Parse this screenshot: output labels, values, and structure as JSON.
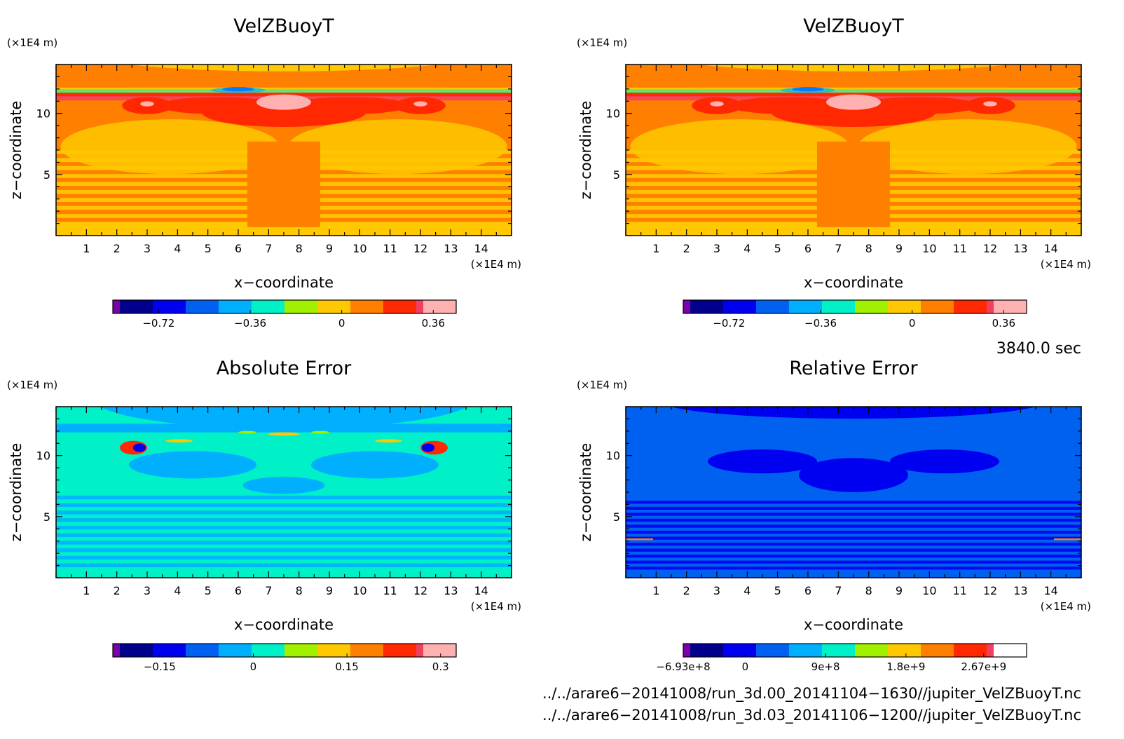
{
  "chart_data": [
    {
      "type": "heatmap",
      "title": "VelZBuoyT",
      "xlabel": "x−coordinate",
      "ylabel": "z−coordinate",
      "x_unit": "(×1E4 m)",
      "y_unit": "(×1E4 m)",
      "xlim": [
        0,
        15
      ],
      "ylim": [
        0,
        14
      ],
      "x_ticks": [
        "1",
        "2",
        "3",
        "4",
        "5",
        "6",
        "7",
        "8",
        "9",
        "10",
        "11",
        "12",
        "13",
        "14"
      ],
      "y_ticks": [
        "5",
        "10"
      ],
      "colorbar": {
        "range": [
          -0.9,
          0.45
        ],
        "labels": [
          "−0.72",
          "−0.36",
          "0",
          "0.36"
        ],
        "label_values": [
          -0.72,
          -0.36,
          0,
          0.36
        ],
        "colors": [
          "#7a00a8",
          "#00008c",
          "#0000f0",
          "#0060f0",
          "#00b0ff",
          "#00f0c8",
          "#a0f000",
          "#ffc800",
          "#ff8000",
          "#ff2800",
          "#f04060",
          "#ffb0b0"
        ]
      }
    },
    {
      "type": "heatmap",
      "title": "VelZBuoyT",
      "xlabel": "x−coordinate",
      "ylabel": "z−coordinate",
      "x_unit": "(×1E4 m)",
      "y_unit": "(×1E4 m)",
      "xlim": [
        0,
        15
      ],
      "ylim": [
        0,
        14
      ],
      "x_ticks": [
        "1",
        "2",
        "3",
        "4",
        "5",
        "6",
        "7",
        "8",
        "9",
        "10",
        "11",
        "12",
        "13",
        "14"
      ],
      "y_ticks": [
        "5",
        "10"
      ],
      "colorbar": {
        "range": [
          -0.9,
          0.45
        ],
        "labels": [
          "−0.72",
          "−0.36",
          "0",
          "0.36"
        ],
        "label_values": [
          -0.72,
          -0.36,
          0,
          0.36
        ],
        "colors": [
          "#7a00a8",
          "#00008c",
          "#0000f0",
          "#0060f0",
          "#00b0ff",
          "#00f0c8",
          "#a0f000",
          "#ffc800",
          "#ff8000",
          "#ff2800",
          "#f04060",
          "#ffb0b0"
        ]
      }
    },
    {
      "type": "heatmap",
      "title": "Absolute Error",
      "xlabel": "x−coordinate",
      "ylabel": "z−coordinate",
      "x_unit": "(×1E4 m)",
      "y_unit": "(×1E4 m)",
      "xlim": [
        0,
        15
      ],
      "ylim": [
        0,
        14
      ],
      "x_ticks": [
        "1",
        "2",
        "3",
        "4",
        "5",
        "6",
        "7",
        "8",
        "9",
        "10",
        "11",
        "12",
        "13",
        "14"
      ],
      "y_ticks": [
        "5",
        "10"
      ],
      "colorbar": {
        "range": [
          -0.225,
          0.325
        ],
        "labels": [
          "−0.15",
          "0",
          "0.15",
          "0.3"
        ],
        "label_values": [
          -0.15,
          0,
          0.15,
          0.3
        ],
        "colors": [
          "#7a00a8",
          "#00008c",
          "#0000f0",
          "#0060f0",
          "#00b0ff",
          "#00f0c8",
          "#a0f000",
          "#ffc800",
          "#ff8000",
          "#ff2800",
          "#f04060",
          "#ffb0b0"
        ]
      }
    },
    {
      "type": "heatmap",
      "title": "Relative Error",
      "xlabel": "x−coordinate",
      "ylabel": "z−coordinate",
      "x_unit": "(×1E4 m)",
      "y_unit": "(×1E4 m)",
      "xlim": [
        0,
        15
      ],
      "ylim": [
        0,
        14
      ],
      "x_ticks": [
        "1",
        "2",
        "3",
        "4",
        "5",
        "6",
        "7",
        "8",
        "9",
        "10",
        "11",
        "12",
        "13",
        "14"
      ],
      "y_ticks": [
        "5",
        "10"
      ],
      "colorbar": {
        "range": [
          -693000000.0,
          3150000000.0
        ],
        "labels": [
          "−6.93e+8",
          "0",
          "9e+8",
          "1.8e+9",
          "2.67e+9"
        ],
        "label_values": [
          -693000000.0,
          0,
          900000000.0,
          1800000000.0,
          2670000000.0
        ],
        "colors": [
          "#7a00a8",
          "#00008c",
          "#0000f0",
          "#0060f0",
          "#00b0ff",
          "#00f0c8",
          "#a0f000",
          "#ffc800",
          "#ff8000",
          "#ff2800",
          "#f04060",
          "#ffffff"
        ]
      }
    }
  ],
  "time_label": "3840.0 sec",
  "files": [
    "../../arare6−20141008/run_3d.00_20141104−1630//jupiter_VelZBuoyT.nc",
    "../../arare6−20141008/run_3d.03_20141106−1200//jupiter_VelZBuoyT.nc"
  ]
}
